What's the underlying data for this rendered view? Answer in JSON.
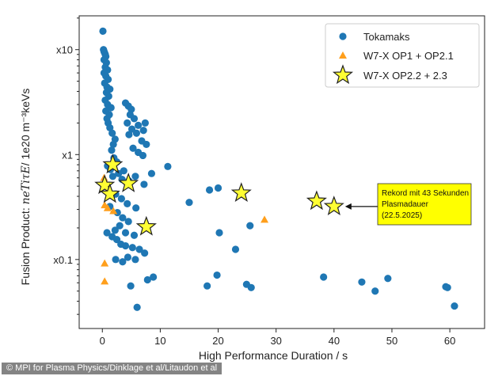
{
  "credit": "© MPI for Plasma Physics/Dinklage et al/Litaudon et al",
  "colors": {
    "tokamak": "#1f77b4",
    "op1": "#ff9f1c",
    "op22_fill": "#ffff33",
    "op22_edge": "#222222",
    "annotation_bg": "#ffff00"
  },
  "chart_data": {
    "type": "scatter",
    "xlabel": "High Performance Duration / s",
    "ylabel_prefix": "Fusion Product:  ",
    "ylabel_math": "neTiτE",
    "ylabel_suffix": "/  1e20 m⁻³keVs",
    "xlim": [
      -4,
      66
    ],
    "ylim": [
      0.022,
      21
    ],
    "y_scale": "log",
    "x_ticks": [
      0,
      10,
      20,
      30,
      40,
      50,
      60
    ],
    "y_ticks": [
      {
        "value": 0.1,
        "label": "x0.1"
      },
      {
        "value": 1,
        "label": "x1"
      },
      {
        "value": 10,
        "label": "x10"
      }
    ],
    "grid": false,
    "legend_position": "top-right",
    "series": [
      {
        "name": "Tokamaks",
        "marker": "circle",
        "points": [
          [
            0.1,
            15.0
          ],
          [
            0.2,
            10.0
          ],
          [
            0.3,
            9.6
          ],
          [
            0.4,
            9.3
          ],
          [
            0.5,
            9.0
          ],
          [
            0.6,
            8.6
          ],
          [
            0.3,
            8.0
          ],
          [
            0.7,
            7.5
          ],
          [
            0.5,
            6.8
          ],
          [
            0.9,
            6.4
          ],
          [
            0.3,
            6.0
          ],
          [
            0.6,
            5.6
          ],
          [
            1.0,
            5.2
          ],
          [
            0.4,
            4.8
          ],
          [
            0.8,
            4.4
          ],
          [
            1.3,
            4.2
          ],
          [
            0.7,
            3.9
          ],
          [
            1.1,
            3.6
          ],
          [
            0.5,
            3.3
          ],
          [
            0.9,
            3.0
          ],
          [
            1.5,
            2.8
          ],
          [
            0.6,
            2.6
          ],
          [
            1.2,
            2.4
          ],
          [
            0.8,
            2.2
          ],
          [
            1.0,
            2.0
          ],
          [
            1.3,
            1.8
          ],
          [
            1.7,
            1.6
          ],
          [
            2.2,
            1.4
          ],
          [
            1.9,
            1.25
          ],
          [
            1.6,
            1.1
          ],
          [
            2.0,
            0.93
          ],
          [
            2.5,
            0.85
          ],
          [
            0.9,
            0.78
          ],
          [
            1.4,
            0.72
          ],
          [
            2.8,
            0.66
          ],
          [
            1.8,
            0.62
          ],
          [
            3.4,
            0.58
          ],
          [
            4.0,
            3.1
          ],
          [
            4.5,
            2.9
          ],
          [
            5.0,
            2.7
          ],
          [
            4.8,
            2.4
          ],
          [
            5.5,
            2.2
          ],
          [
            4.3,
            2.0
          ],
          [
            6.2,
            1.9
          ],
          [
            5.1,
            1.75
          ],
          [
            5.9,
            1.6
          ],
          [
            7.4,
            2.0
          ],
          [
            7.1,
            1.7
          ],
          [
            4.6,
            1.55
          ],
          [
            6.8,
            1.35
          ],
          [
            7.6,
            1.25
          ],
          [
            5.3,
            1.15
          ],
          [
            6.2,
            1.05
          ],
          [
            7.0,
            0.98
          ],
          [
            3.7,
            0.7
          ],
          [
            5.7,
            0.62
          ],
          [
            4.6,
            0.56
          ],
          [
            7.2,
            0.52
          ],
          [
            11.3,
            0.77
          ],
          [
            8.5,
            0.66
          ],
          [
            2.3,
            0.42
          ],
          [
            3.3,
            0.38
          ],
          [
            4.3,
            0.34
          ],
          [
            5.8,
            0.31
          ],
          [
            1.3,
            0.32
          ],
          [
            2.6,
            0.28
          ],
          [
            3.5,
            0.25
          ],
          [
            4.5,
            0.23
          ],
          [
            3.0,
            0.21
          ],
          [
            2.2,
            0.19
          ],
          [
            4.0,
            0.18
          ],
          [
            1.7,
            0.165
          ],
          [
            5.5,
            0.17
          ],
          [
            0.8,
            0.18
          ],
          [
            2.5,
            0.155
          ],
          [
            3.2,
            0.14
          ],
          [
            4.0,
            0.135
          ],
          [
            5.2,
            0.13
          ],
          [
            6.4,
            0.125
          ],
          [
            7.3,
            0.115
          ],
          [
            4.4,
            0.105
          ],
          [
            5.7,
            0.1
          ],
          [
            2.3,
            0.1
          ],
          [
            3.5,
            0.095
          ],
          [
            4.9,
            0.056
          ],
          [
            6.0,
            0.035
          ],
          [
            7.8,
            0.064
          ],
          [
            8.8,
            0.068
          ],
          [
            15.0,
            0.35
          ],
          [
            18.5,
            0.46
          ],
          [
            20.0,
            0.48
          ],
          [
            24.0,
            0.42
          ],
          [
            20.2,
            0.18
          ],
          [
            25.5,
            0.21
          ],
          [
            23.0,
            0.125
          ],
          [
            19.8,
            0.071
          ],
          [
            18.1,
            0.056
          ],
          [
            24.9,
            0.058
          ],
          [
            25.7,
            0.054
          ],
          [
            38.2,
            0.068
          ],
          [
            44.8,
            0.061
          ],
          [
            47.1,
            0.05
          ],
          [
            49.3,
            0.066
          ],
          [
            59.3,
            0.055
          ],
          [
            59.6,
            0.054
          ],
          [
            60.8,
            0.036
          ]
        ]
      },
      {
        "name": "W7-X OP1 + OP2.1",
        "marker": "triangle",
        "points": [
          [
            0.3,
            0.6
          ],
          [
            0.4,
            0.33
          ],
          [
            0.9,
            0.31
          ],
          [
            1.9,
            0.29
          ],
          [
            28.0,
            0.24
          ],
          [
            0.4,
            0.092
          ],
          [
            0.4,
            0.062
          ]
        ]
      },
      {
        "name": "W7-X OP2.2 + 2.3",
        "marker": "star",
        "points": [
          [
            1.8,
            0.8
          ],
          [
            0.4,
            0.51
          ],
          [
            1.3,
            0.42
          ],
          [
            4.5,
            0.53
          ],
          [
            7.6,
            0.205
          ],
          [
            24.0,
            0.43
          ],
          [
            37.0,
            0.36
          ],
          [
            40.0,
            0.32
          ]
        ]
      }
    ],
    "annotation": {
      "lines": [
        "Rekord mit 43 Sekunden",
        "Plasmadauer",
        "(22.5.2025)"
      ],
      "target": [
        40.0,
        0.32
      ]
    }
  }
}
